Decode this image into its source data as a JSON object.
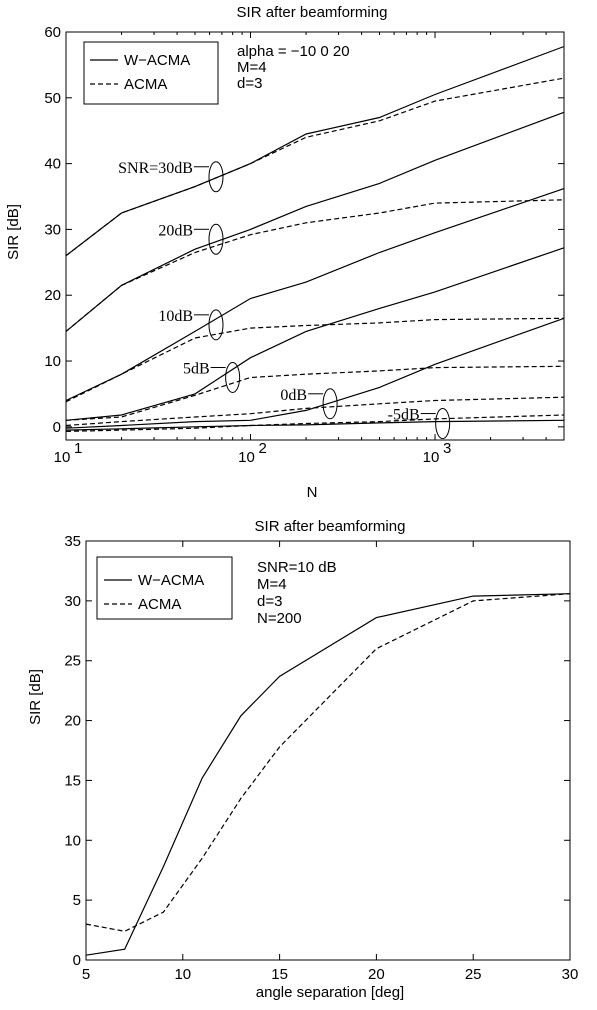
{
  "chart_data": [
    {
      "type": "line",
      "title": "SIR after beamforming",
      "xlabel": "N",
      "ylabel": "SIR [dB]",
      "xscale": "log",
      "xlim": [
        10,
        5000
      ],
      "ylim": [
        -2,
        60
      ],
      "xticks": [
        10,
        100,
        1000
      ],
      "xtick_labels": [
        {
          "base": "10",
          "exp": "1"
        },
        {
          "base": "10",
          "exp": "2"
        },
        {
          "base": "10",
          "exp": "3"
        }
      ],
      "yticks": [
        0,
        10,
        20,
        30,
        40,
        50,
        60
      ],
      "legend": {
        "position": "top-left",
        "entries": [
          {
            "label": "W−ACMA",
            "style": "solid"
          },
          {
            "label": "ACMA",
            "style": "dashed"
          }
        ]
      },
      "annotations_text": [
        "alpha = −10  0  20",
        "M=4",
        "d=3"
      ],
      "snr_labels": [
        {
          "text": "SNR=30dB",
          "x": 65,
          "y": 38
        },
        {
          "text": "20dB",
          "x": 65,
          "y": 28.5
        },
        {
          "text": "10dB",
          "x": 65,
          "y": 15.5
        },
        {
          "text": "5dB",
          "x": 80,
          "y": 7.5
        },
        {
          "text": "0dB",
          "x": 270,
          "y": 3.5
        },
        {
          "text": "-5dB",
          "x": 1100,
          "y": 0.5
        }
      ],
      "x": [
        10,
        20,
        50,
        100,
        200,
        500,
        1000,
        5000
      ],
      "series": [
        {
          "name": "W−ACMA",
          "snr": "30dB",
          "style": "solid",
          "values": [
            26,
            32.5,
            36.5,
            40,
            44.5,
            47,
            50.5,
            57.8
          ]
        },
        {
          "name": "ACMA",
          "snr": "30dB",
          "style": "dashed",
          "values": [
            26,
            32.5,
            36.5,
            40,
            44,
            46.5,
            49.5,
            53
          ]
        },
        {
          "name": "W−ACMA",
          "snr": "20dB",
          "style": "solid",
          "values": [
            14.5,
            21.5,
            27,
            30,
            33.5,
            37,
            40.5,
            47.8
          ]
        },
        {
          "name": "ACMA",
          "snr": "20dB",
          "style": "dashed",
          "values": [
            14.5,
            21.5,
            26.5,
            29.2,
            31,
            32.5,
            34,
            34.5
          ]
        },
        {
          "name": "W−ACMA",
          "snr": "10dB",
          "style": "solid",
          "values": [
            4,
            8,
            14.5,
            19.5,
            22,
            26.5,
            29.5,
            36.2
          ]
        },
        {
          "name": "ACMA",
          "snr": "10dB",
          "style": "dashed",
          "values": [
            3.8,
            8,
            13.5,
            15,
            15.4,
            15.8,
            16.3,
            16.5
          ]
        },
        {
          "name": "W−ACMA",
          "snr": "5dB",
          "style": "solid",
          "values": [
            1,
            1.8,
            5,
            10.5,
            14.5,
            18,
            20.5,
            27.2
          ]
        },
        {
          "name": "ACMA",
          "snr": "5dB",
          "style": "dashed",
          "values": [
            1,
            1.5,
            4.8,
            7.5,
            8,
            8.5,
            9,
            9.2
          ]
        },
        {
          "name": "W−ACMA",
          "snr": "0dB",
          "style": "solid",
          "values": [
            -0.2,
            0.2,
            0.8,
            1,
            2.5,
            6,
            9.5,
            16.5
          ]
        },
        {
          "name": "ACMA",
          "snr": "0dB",
          "style": "dashed",
          "values": [
            0.2,
            0.8,
            1.5,
            2,
            2.8,
            3.5,
            4,
            4.5
          ]
        },
        {
          "name": "W−ACMA",
          "snr": "-5dB",
          "style": "solid",
          "values": [
            -0.5,
            -0.3,
            0,
            0.2,
            0.3,
            0.6,
            0.8,
            1
          ]
        },
        {
          "name": "ACMA",
          "snr": "-5dB",
          "style": "dashed",
          "values": [
            -0.7,
            -0.5,
            -0.2,
            0.2,
            0.5,
            0.8,
            1.2,
            1.8
          ]
        }
      ]
    },
    {
      "type": "line",
      "title": "SIR after beamforming",
      "xlabel": "angle separation [deg]",
      "ylabel": "SIR [dB]",
      "xlim": [
        5,
        30
      ],
      "ylim": [
        0,
        35
      ],
      "xticks": [
        5,
        10,
        15,
        20,
        25,
        30
      ],
      "yticks": [
        0,
        5,
        10,
        15,
        20,
        25,
        30,
        35
      ],
      "legend": {
        "position": "top-left",
        "entries": [
          {
            "label": "W−ACMA",
            "style": "solid"
          },
          {
            "label": "ACMA",
            "style": "dashed"
          }
        ]
      },
      "annotations_text": [
        "SNR=10 dB",
        "M=4",
        "d=3",
        "N=200"
      ],
      "series": [
        {
          "name": "W−ACMA",
          "style": "solid",
          "x": [
            5,
            7,
            9,
            11,
            13,
            15,
            20,
            25,
            30
          ],
          "values": [
            0.4,
            0.9,
            7.8,
            15.2,
            20.4,
            23.7,
            28.6,
            30.4,
            30.6
          ]
        },
        {
          "name": "ACMA",
          "style": "dashed",
          "x": [
            5,
            7,
            9,
            11,
            13,
            15,
            20,
            25,
            30
          ],
          "values": [
            3,
            2.4,
            4,
            8.5,
            13.5,
            17.8,
            26,
            30,
            30.6
          ]
        }
      ]
    }
  ]
}
